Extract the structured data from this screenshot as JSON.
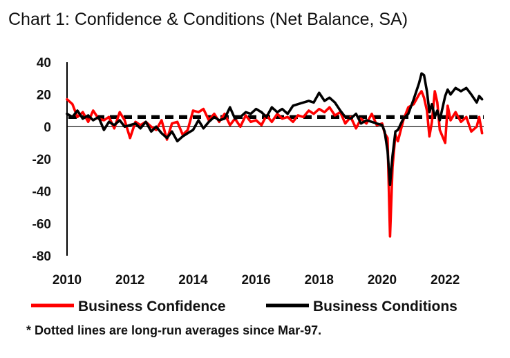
{
  "chart_data": {
    "type": "line",
    "title": "Chart 1: Confidence & Conditions (Net Balance, SA)",
    "xlabel": "",
    "ylabel": "",
    "xlim": [
      2010,
      2023.3
    ],
    "ylim": [
      -80,
      40
    ],
    "xticks": [
      2010,
      2012,
      2014,
      2016,
      2018,
      2020,
      2022
    ],
    "xtick_labels": [
      "2010",
      "2012",
      "2014",
      "2016",
      "2018",
      "2020",
      "2022"
    ],
    "yticks": [
      40,
      20,
      0,
      -20,
      -40,
      -60,
      -80
    ],
    "ytick_labels": [
      "40",
      "20",
      "0",
      "-20",
      "-40",
      "-60",
      "-80"
    ],
    "footnote": "* Dotted lines are long-run averages since Mar-97.",
    "series": [
      {
        "name": "Business Confidence",
        "color": "#ff0000",
        "long_run_average": 5.5,
        "x": [
          2010.0,
          2010.17,
          2010.33,
          2010.5,
          2010.67,
          2010.83,
          2011.0,
          2011.17,
          2011.33,
          2011.5,
          2011.67,
          2011.83,
          2012.0,
          2012.17,
          2012.33,
          2012.5,
          2012.67,
          2012.83,
          2013.0,
          2013.17,
          2013.33,
          2013.5,
          2013.67,
          2013.83,
          2014.0,
          2014.17,
          2014.33,
          2014.5,
          2014.67,
          2014.83,
          2015.0,
          2015.17,
          2015.33,
          2015.5,
          2015.67,
          2015.83,
          2016.0,
          2016.17,
          2016.33,
          2016.5,
          2016.67,
          2016.83,
          2017.0,
          2017.17,
          2017.33,
          2017.5,
          2017.67,
          2017.83,
          2018.0,
          2018.17,
          2018.33,
          2018.5,
          2018.67,
          2018.83,
          2019.0,
          2019.17,
          2019.33,
          2019.5,
          2019.67,
          2019.83,
          2020.0,
          2020.08,
          2020.17,
          2020.25,
          2020.33,
          2020.42,
          2020.5,
          2020.67,
          2020.83,
          2021.0,
          2021.17,
          2021.25,
          2021.33,
          2021.42,
          2021.5,
          2021.58,
          2021.67,
          2021.75,
          2021.83,
          2022.0,
          2022.08,
          2022.17,
          2022.33,
          2022.5,
          2022.67,
          2022.83,
          2023.0,
          2023.08,
          2023.17
        ],
        "values": [
          17,
          14,
          6,
          9,
          3,
          10,
          5,
          4,
          6,
          -1,
          9,
          4,
          -7,
          3,
          1,
          3,
          0,
          -2,
          4,
          -8,
          2,
          3,
          -5,
          -2,
          10,
          9,
          11,
          4,
          8,
          3,
          8,
          1,
          5,
          0,
          7,
          3,
          4,
          1,
          7,
          3,
          8,
          5,
          6,
          3,
          7,
          6,
          10,
          8,
          11,
          9,
          12,
          7,
          9,
          2,
          6,
          -1,
          5,
          2,
          8,
          1,
          2,
          -4,
          -7,
          -68,
          -25,
          -5,
          -9,
          4,
          12,
          14,
          20,
          22,
          18,
          10,
          -6,
          3,
          22,
          15,
          -2,
          -10,
          13,
          4,
          9,
          3,
          6,
          -3,
          0,
          6,
          -4
        ]
      },
      {
        "name": "Business Conditions",
        "color": "#000000",
        "long_run_average": 6.5,
        "x": [
          2010.0,
          2010.17,
          2010.33,
          2010.5,
          2010.67,
          2010.83,
          2011.0,
          2011.17,
          2011.33,
          2011.5,
          2011.67,
          2011.83,
          2012.0,
          2012.17,
          2012.33,
          2012.5,
          2012.67,
          2012.83,
          2013.0,
          2013.17,
          2013.33,
          2013.5,
          2013.67,
          2013.83,
          2014.0,
          2014.17,
          2014.33,
          2014.5,
          2014.67,
          2014.83,
          2015.0,
          2015.17,
          2015.33,
          2015.5,
          2015.67,
          2015.83,
          2016.0,
          2016.17,
          2016.33,
          2016.5,
          2016.67,
          2016.83,
          2017.0,
          2017.17,
          2017.33,
          2017.5,
          2017.67,
          2017.83,
          2018.0,
          2018.17,
          2018.33,
          2018.5,
          2018.67,
          2018.83,
          2019.0,
          2019.17,
          2019.33,
          2019.5,
          2019.67,
          2019.83,
          2020.0,
          2020.08,
          2020.17,
          2020.25,
          2020.33,
          2020.42,
          2020.5,
          2020.67,
          2020.83,
          2021.0,
          2021.17,
          2021.25,
          2021.33,
          2021.42,
          2021.5,
          2021.58,
          2021.67,
          2021.75,
          2021.83,
          2022.0,
          2022.08,
          2022.17,
          2022.33,
          2022.5,
          2022.67,
          2022.83,
          2023.0,
          2023.08,
          2023.17
        ],
        "values": [
          8,
          6,
          10,
          5,
          7,
          4,
          6,
          -2,
          3,
          1,
          4,
          0,
          1,
          2,
          -1,
          3,
          -3,
          0,
          -4,
          -7,
          -3,
          -9,
          -6,
          -4,
          -2,
          4,
          -1,
          3,
          6,
          4,
          5,
          12,
          5,
          6,
          9,
          8,
          11,
          9,
          6,
          12,
          9,
          11,
          8,
          13,
          14,
          15,
          16,
          15,
          21,
          16,
          18,
          15,
          10,
          6,
          5,
          8,
          2,
          4,
          3,
          2,
          1,
          -3,
          -15,
          -36,
          -18,
          -3,
          -2,
          5,
          8,
          17,
          27,
          33,
          32,
          22,
          9,
          14,
          6,
          10,
          4,
          19,
          23,
          20,
          24,
          22,
          24,
          20,
          15,
          19,
          17
        ]
      }
    ]
  }
}
